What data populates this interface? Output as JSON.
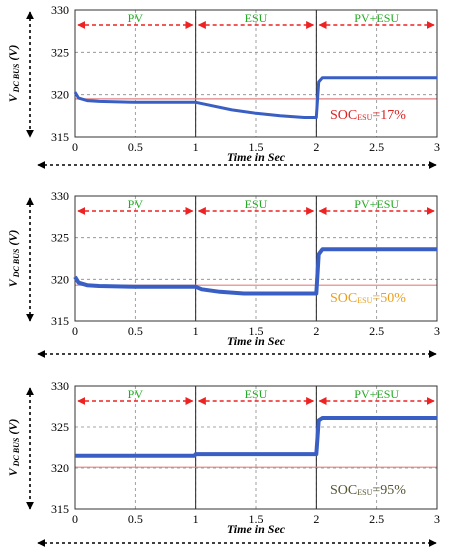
{
  "figure": {
    "colors": {
      "signal": "#3a5fc4",
      "reference": "#e08080",
      "phase_label": "#22aa22",
      "phase_arrow": "#ee2222",
      "axis_arrow": "#000000",
      "grid": "#888888"
    }
  },
  "chart_data": [
    {
      "type": "line",
      "xlabel": "Time in Sec",
      "ylabel_main": "V",
      "ylabel_sub": "DC BUS",
      "ylabel_unit": "(V)",
      "xlim": [
        0,
        3
      ],
      "ylim": [
        315,
        330
      ],
      "xticks": [
        "0",
        "0.5",
        "1",
        "1.5",
        "2",
        "2.5",
        "3"
      ],
      "yticks": [
        "315",
        "320",
        "325",
        "330"
      ],
      "grid": true,
      "phases": [
        {
          "label": "PV",
          "x": [
            0,
            1
          ]
        },
        {
          "label": "ESU",
          "x": [
            1,
            2
          ]
        },
        {
          "label": "PV+ESU",
          "x": [
            2,
            3
          ]
        }
      ],
      "reference_y": 319.5,
      "annotation": {
        "prefix": "SOC",
        "sub": "ESU",
        "suffix": "=17%",
        "color": "#dd2222"
      },
      "series": [
        {
          "x": [
            0,
            0.03,
            0.1,
            0.2,
            0.5,
            0.8,
            0.99,
            1.0,
            1.1,
            1.3,
            1.5,
            1.7,
            1.9,
            1.99,
            2.0,
            2.02,
            2.05,
            2.5,
            3.0
          ],
          "y": [
            320.3,
            319.6,
            319.3,
            319.2,
            319.1,
            319.1,
            319.1,
            319.1,
            318.8,
            318.2,
            317.8,
            317.5,
            317.3,
            317.3,
            317.3,
            321.5,
            322.0,
            322.0,
            322.0
          ],
          "width": 3
        }
      ]
    },
    {
      "type": "line",
      "xlabel": "Time in Sec",
      "ylabel_main": "V",
      "ylabel_sub": "DC BUS",
      "ylabel_unit": "(V)",
      "xlim": [
        0,
        3
      ],
      "ylim": [
        315,
        330
      ],
      "xticks": [
        "0",
        "0.5",
        "1",
        "1.5",
        "2",
        "2.5",
        "3"
      ],
      "yticks": [
        "315",
        "320",
        "325",
        "330"
      ],
      "grid": true,
      "phases": [
        {
          "label": "PV",
          "x": [
            0,
            1
          ]
        },
        {
          "label": "ESU",
          "x": [
            1,
            2
          ]
        },
        {
          "label": "PV+ESU",
          "x": [
            2,
            3
          ]
        }
      ],
      "reference_y": 319.3,
      "annotation": {
        "prefix": "SOC",
        "sub": "ESU",
        "suffix": "=50%",
        "color": "#e8a020"
      },
      "series": [
        {
          "x": [
            0,
            0.03,
            0.1,
            0.2,
            0.5,
            0.8,
            0.99,
            1.0,
            1.05,
            1.2,
            1.4,
            1.6,
            1.8,
            1.99,
            2.0,
            2.02,
            2.05,
            2.5,
            3.0
          ],
          "y": [
            320.3,
            319.6,
            319.3,
            319.2,
            319.1,
            319.1,
            319.1,
            319.1,
            318.8,
            318.5,
            318.3,
            318.3,
            318.3,
            318.3,
            318.3,
            323.0,
            323.6,
            323.6,
            323.6
          ],
          "width": 4
        }
      ]
    },
    {
      "type": "line",
      "xlabel": "Time in Sec",
      "ylabel_main": "V",
      "ylabel_sub": "DC BUS",
      "ylabel_unit": "(V)",
      "xlim": [
        0,
        3
      ],
      "ylim": [
        315,
        330
      ],
      "xticks": [
        "0",
        "0.5",
        "1",
        "1.5",
        "2",
        "2.5",
        "3"
      ],
      "yticks": [
        "315",
        "320",
        "325",
        "330"
      ],
      "grid": true,
      "phases": [
        {
          "label": "PV",
          "x": [
            0,
            1
          ]
        },
        {
          "label": "ESU",
          "x": [
            1,
            2
          ]
        },
        {
          "label": "PV+ESU",
          "x": [
            2,
            3
          ]
        }
      ],
      "reference_y": 320.1,
      "annotation": {
        "prefix": "SOC",
        "sub": "ESU",
        "suffix": "=95%",
        "color": "#555533"
      },
      "series": [
        {
          "x": [
            0,
            0.99,
            1.0,
            1.99,
            2.0,
            2.02,
            2.05,
            2.5,
            3.0
          ],
          "y": [
            321.5,
            321.5,
            321.7,
            321.7,
            321.7,
            325.8,
            326.1,
            326.1,
            326.1
          ],
          "width": 4
        }
      ]
    }
  ]
}
